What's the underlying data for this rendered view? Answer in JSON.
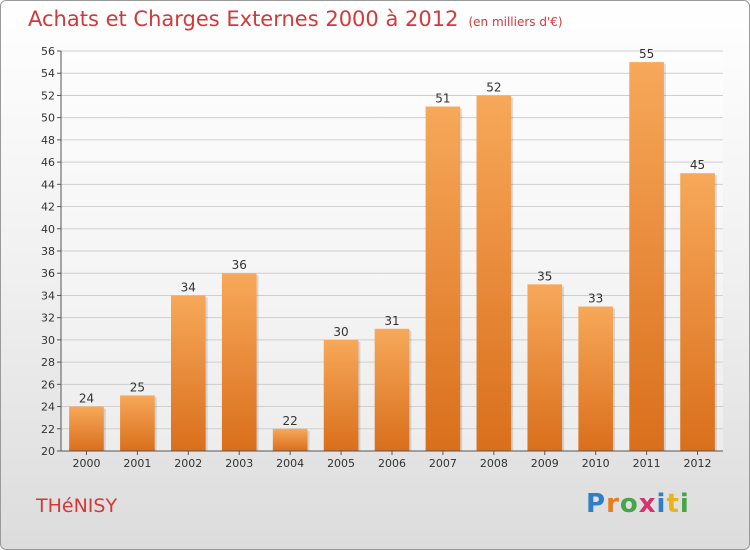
{
  "title": "Achats et Charges Externes 2000 à 2012",
  "subtitle": "(en milliers d'€)",
  "place": "THéNISY",
  "logo": {
    "text": "Proxiti",
    "letters": [
      {
        "ch": "P",
        "color": "#2e7fc8"
      },
      {
        "ch": "r",
        "color": "#e87d1e"
      },
      {
        "ch": "o",
        "color": "#46a544"
      },
      {
        "ch": "x",
        "color": "#d6336c"
      },
      {
        "ch": "i",
        "color": "#2e7fc8"
      },
      {
        "ch": "t",
        "color": "#e8b41e"
      },
      {
        "ch": "i",
        "color": "#46a544"
      }
    ]
  },
  "chart_data": {
    "type": "bar",
    "title": "Achats et Charges Externes 2000 à 2012",
    "subtitle": "(en milliers d'€)",
    "categories": [
      "2000",
      "2001",
      "2002",
      "2003",
      "2004",
      "2005",
      "2006",
      "2007",
      "2008",
      "2009",
      "2010",
      "2011",
      "2012"
    ],
    "values": [
      24,
      25,
      34,
      36,
      22,
      30,
      31,
      51,
      52,
      35,
      33,
      55,
      45
    ],
    "ylim": [
      20,
      56
    ],
    "yticks": [
      20,
      22,
      24,
      26,
      28,
      30,
      32,
      34,
      36,
      38,
      40,
      42,
      44,
      46,
      48,
      50,
      52,
      54,
      56
    ],
    "grid": true,
    "bar_color": "#e8832a",
    "bar_color_light": "#f7a85a",
    "label_color": "#333333"
  }
}
